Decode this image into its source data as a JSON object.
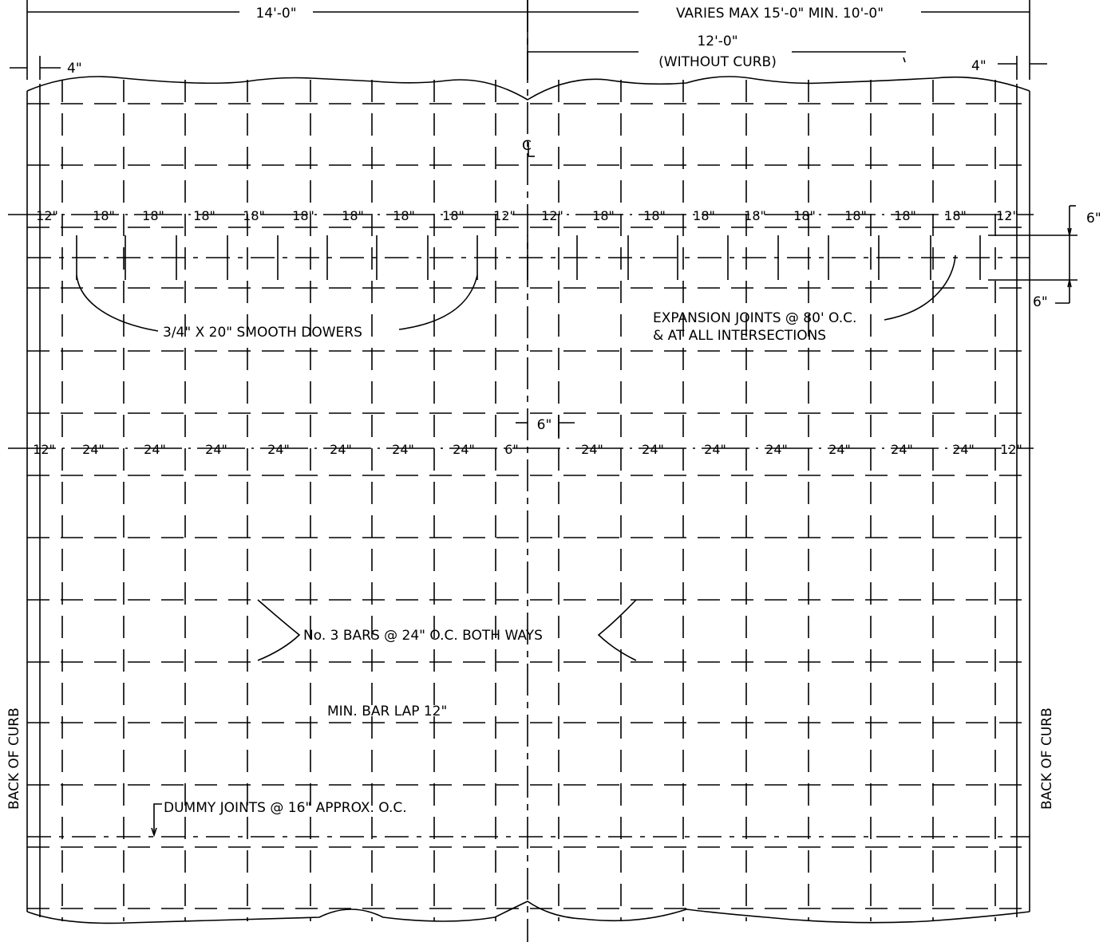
{
  "drawing": {
    "dim_top_left": "14'-0\"",
    "dim_top_right": "VARIES MAX 15'-0\" MIN. 10'-0\"",
    "dim_without_curb_value": "12'-0\"",
    "dim_without_curb_label": "(WITHOUT CURB)",
    "dim_edge_left": "4\"",
    "dim_edge_right": "4\"",
    "centerline_symbol": "C",
    "dowel_spacing": [
      "12\"",
      "18\"",
      "18\"",
      "18\"",
      "18\"",
      "18\"",
      "18\"",
      "18\"",
      "18\"",
      "12\"",
      "12\"",
      "18\"",
      "18\"",
      "18\"",
      "18\"",
      "18\"",
      "18\"",
      "18\"",
      "18\"",
      "12\""
    ],
    "dowel_offset_top": "6\"",
    "dowel_offset_bottom": "6\"",
    "dowel_note": "3/4\" X 20\" SMOOTH DOWERS",
    "expansion_note_line1": "EXPANSION JOINTS @ 80' O.C.",
    "expansion_note_line2": "& AT ALL INTERSECTIONS",
    "bar_gap": "6\"",
    "bar_spacing": [
      "12\"",
      "24\"",
      "24\"",
      "24\"",
      "24\"",
      "24\"",
      "24\"",
      "24\"",
      "6\"",
      "24\"",
      "24\"",
      "24\"",
      "24\"",
      "24\"",
      "24\"",
      "24\"",
      "12\""
    ],
    "bars_note": "No. 3 BARS @ 24\" O.C. BOTH WAYS",
    "lap_note": "MIN. BAR LAP 12\"",
    "dummy_note": "DUMMY JOINTS @ 16\" APPROX. O.C.",
    "curb_left": "BACK OF CURB",
    "curb_right": "BACK OF CURB"
  }
}
